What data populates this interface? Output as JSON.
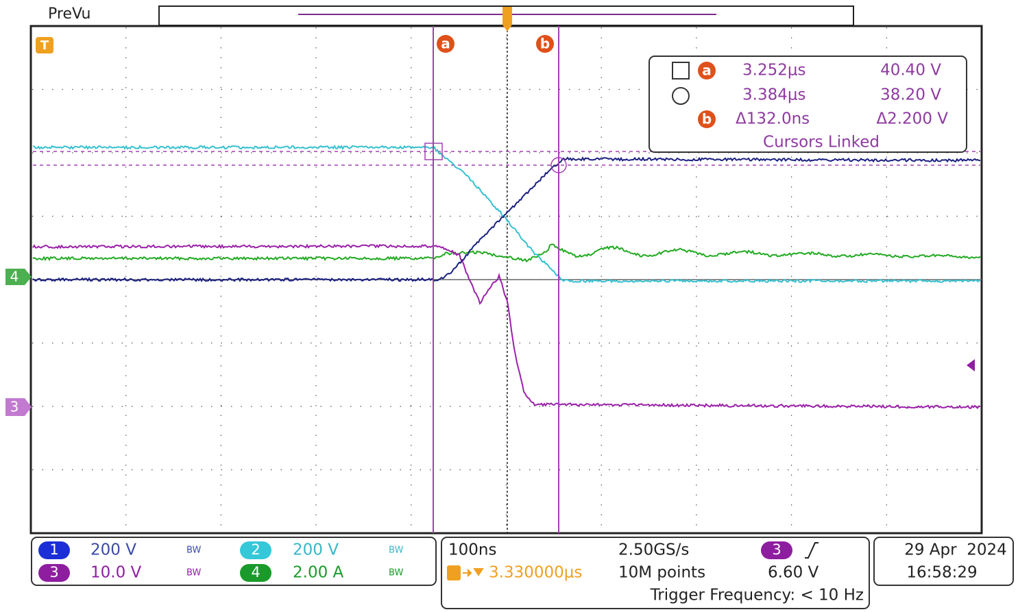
{
  "header": {
    "title": "PreVu"
  },
  "markers": {
    "trigger": "T",
    "cursor_a": "a",
    "cursor_b": "b",
    "ch4": "4",
    "ch3": "3"
  },
  "readout": {
    "a_label": "a",
    "b_label": "b",
    "a_time": "3.252μs",
    "a_value": "40.40 V",
    "b_time": "3.384μs",
    "b_value": "38.20 V",
    "delta_time": "Δ132.0ns",
    "delta_value": "Δ2.200 V",
    "linked": "Cursors Linked"
  },
  "channels": [
    {
      "number": "1",
      "scale": "200 V"
    },
    {
      "number": "2",
      "scale": "200 V"
    },
    {
      "number": "3",
      "scale": "10.0 V"
    },
    {
      "number": "4",
      "scale": "2.00 A"
    }
  ],
  "bandwidth_label": "BW",
  "acquisition": {
    "timebase": "100ns",
    "position": "3.330000μs",
    "sample_rate": "2.50GS/s",
    "record_length": "10M points",
    "trigger_frequency": "Trigger Frequency: < 10 Hz"
  },
  "trigger": {
    "source": "3",
    "level": "6.60 V"
  },
  "datetime": {
    "date": "29 Apr  2024",
    "time": "16:58:29"
  }
}
